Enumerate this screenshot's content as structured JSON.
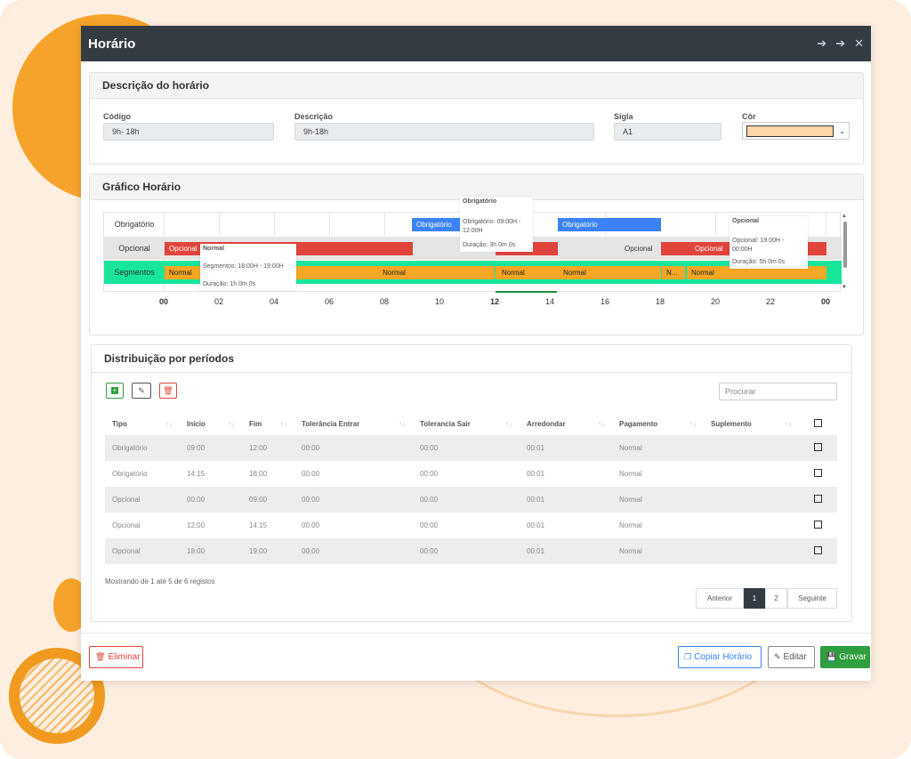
{
  "modal": {
    "title": "Horário"
  },
  "descricao": {
    "heading": "Descrição do horário",
    "codigo_label": "Código",
    "codigo_value": "9h- 18h",
    "descricao_label": "Descrição",
    "descricao_value": "9h-18h",
    "sigla_label": "Sigla",
    "sigla_value": "A1",
    "cor_label": "Côr",
    "cor_value": "#ffd8a8"
  },
  "grafico": {
    "heading": "Gráfico Horário",
    "rows": [
      "Obrigatório",
      "Opcional",
      "Segmentos"
    ],
    "ticks": [
      "00",
      "02",
      "04",
      "06",
      "08",
      "10",
      "12",
      "14",
      "16",
      "18",
      "20",
      "22",
      "00"
    ],
    "bars": {
      "obrigatorio_1": "Obrigatório",
      "obrigatorio_2": "Obrigatório",
      "opcional_1": "Opcional",
      "opcional_2": "Opcional",
      "opcional_3": "Opcional",
      "seg_1": "Normal",
      "seg_2": "Normal",
      "seg_3": "Normal",
      "seg_4": "Normal",
      "seg_5": "N...",
      "seg_6": "Normal"
    },
    "tooltips": {
      "t1": {
        "title": "Obrigatório",
        "line1": "Obrigatório: 09:00H - 12:00H",
        "line2": "Duração: 3h 0m 0s"
      },
      "t2": {
        "title": "Normal",
        "line1": "Segmentos: 18:00H - 19:00H",
        "line2": "Duração: 1h 0m 0s"
      },
      "t3": {
        "title": "Opcional",
        "line1": "Opcional: 19:00H - 00:00H",
        "line2": "Duração: 5h 0m 0s"
      }
    }
  },
  "distribuicao": {
    "heading": "Distribuição por períodos",
    "search_placeholder": "Procurar",
    "columns": [
      "Tipo",
      "Início",
      "Fim",
      "Tolerância Entrar",
      "Tolerancia Sair",
      "Arredondar",
      "Pagamento",
      "Suplemento"
    ],
    "rows": [
      [
        "Obrigatório",
        "09:00",
        "12:00",
        "00:00",
        "00:00",
        "00:01",
        "Normal",
        ""
      ],
      [
        "Obrigatório",
        "14:15",
        "18:00",
        "00:00",
        "00:00",
        "00:01",
        "Normal",
        ""
      ],
      [
        "Opcional",
        "00:00",
        "09:00",
        "00:00",
        "00:00",
        "00:01",
        "Normal",
        ""
      ],
      [
        "Opcional",
        "12:00",
        "14:15",
        "00:00",
        "00:00",
        "00:01",
        "Normal",
        ""
      ],
      [
        "Opcional",
        "18:00",
        "19:00",
        "00:00",
        "00:00",
        "00:01",
        "Normal",
        ""
      ]
    ],
    "info": "Mostrando de 1 até 5 de 6 registos",
    "pager": {
      "prev": "Anterior",
      "p1": "1",
      "p2": "2",
      "next": "Seguinte"
    }
  },
  "footer": {
    "delete": "Eliminar",
    "copy": "Copiar Horário",
    "edit": "Editar",
    "save": "Gravar"
  },
  "colors": {
    "obrigatorio": "#3b82f6",
    "opcional": "#e0443c",
    "segmento_normal": "#f5a623",
    "segmentos_row": "#17e59a",
    "header": "#343c43"
  }
}
